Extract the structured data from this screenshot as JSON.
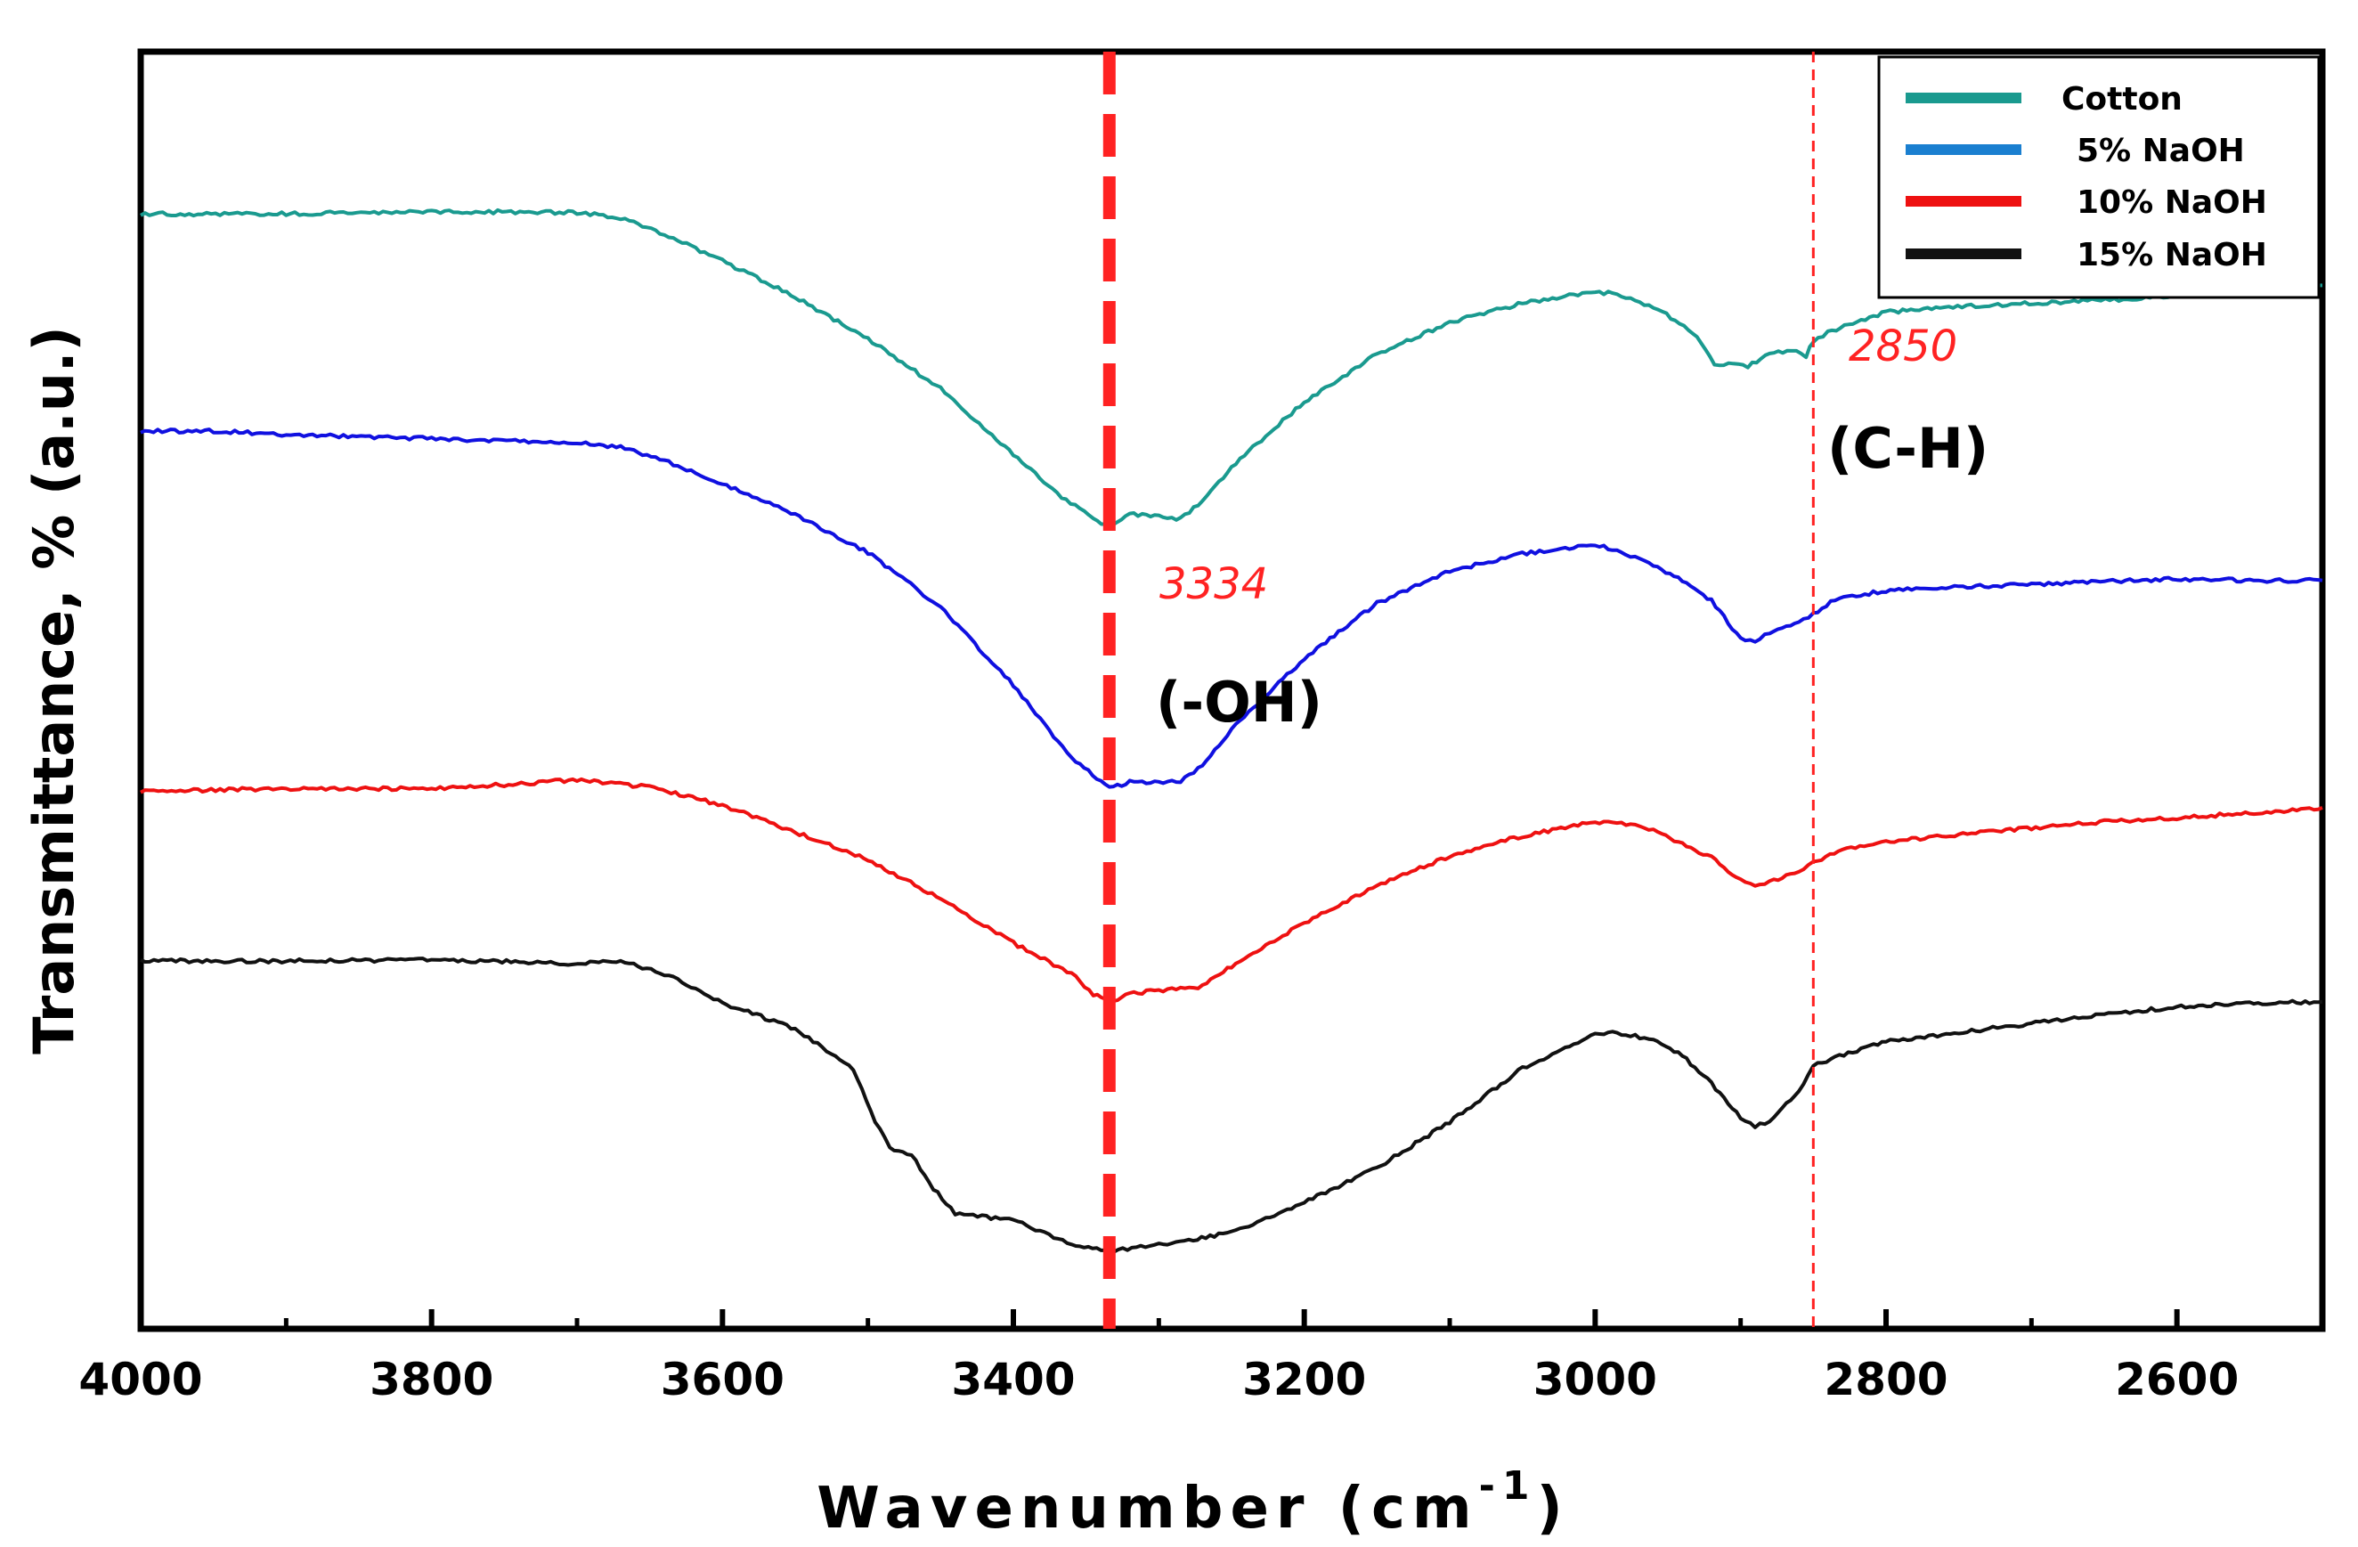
{
  "chart_data": {
    "type": "line",
    "title": "",
    "xlabel": "Wavenumber (cm",
    "xlabel_superscript": "-1",
    "xlabel_close": ")",
    "ylabel": "Transmittance, % (a.u.)",
    "xlim": [
      4000,
      2500
    ],
    "x_reversed": true,
    "y_ticks_visible": false,
    "grid": false,
    "x_ticks": [
      {
        "value": 4000,
        "label": "4000"
      },
      {
        "value": 3800,
        "label": "3800"
      },
      {
        "value": 3600,
        "label": "3600"
      },
      {
        "value": 3400,
        "label": "3400"
      },
      {
        "value": 3200,
        "label": "3200"
      },
      {
        "value": 3000,
        "label": "3000"
      },
      {
        "value": 2800,
        "label": "2800"
      },
      {
        "value": 2600,
        "label": "2600"
      }
    ],
    "legend": {
      "position": "top-right"
    },
    "series": [
      {
        "name": "Cotton",
        "legend_label": "Cotton",
        "color": "#1a9a8f",
        "x": [
          4000,
          3900,
          3800,
          3700,
          3670,
          3640,
          3600,
          3550,
          3500,
          3450,
          3400,
          3370,
          3345,
          3334,
          3320,
          3300,
          3285,
          3270,
          3250,
          3200,
          3150,
          3100,
          3050,
          3000,
          2985,
          2960,
          2945,
          2930,
          2918,
          2905,
          2895,
          2880,
          2865,
          2855,
          2850,
          2840,
          2820,
          2800,
          2780,
          2760,
          2720,
          2680,
          2640,
          2600,
          2560,
          2530,
          2500
        ],
        "y": [
          0.873,
          0.873,
          0.875,
          0.874,
          0.87,
          0.857,
          0.836,
          0.808,
          0.775,
          0.736,
          0.685,
          0.654,
          0.634,
          0.628,
          0.638,
          0.636,
          0.634,
          0.648,
          0.675,
          0.726,
          0.763,
          0.788,
          0.803,
          0.812,
          0.81,
          0.8,
          0.79,
          0.778,
          0.756,
          0.755,
          0.754,
          0.763,
          0.766,
          0.762,
          0.773,
          0.78,
          0.789,
          0.796,
          0.798,
          0.8,
          0.802,
          0.804,
          0.806,
          0.809,
          0.812,
          0.815,
          0.817
        ]
      },
      {
        "name": "5% NaOH",
        "legend_label": "5% NaOH",
        "color": "#1010e0",
        "x": [
          4000,
          3950,
          3900,
          3800,
          3700,
          3670,
          3640,
          3600,
          3550,
          3500,
          3450,
          3400,
          3360,
          3334,
          3320,
          3300,
          3285,
          3270,
          3250,
          3200,
          3150,
          3100,
          3050,
          3000,
          2985,
          2960,
          2940,
          2920,
          2900,
          2890,
          2880,
          2860,
          2850,
          2835,
          2800,
          2750,
          2700,
          2650,
          2600,
          2550,
          2500
        ],
        "y": [
          0.703,
          0.703,
          0.7,
          0.697,
          0.694,
          0.69,
          0.68,
          0.662,
          0.637,
          0.608,
          0.565,
          0.504,
          0.447,
          0.423,
          0.428,
          0.428,
          0.428,
          0.442,
          0.469,
          0.525,
          0.568,
          0.593,
          0.607,
          0.614,
          0.61,
          0.597,
          0.586,
          0.57,
          0.54,
          0.538,
          0.545,
          0.553,
          0.56,
          0.571,
          0.578,
          0.581,
          0.583,
          0.585,
          0.587,
          0.586,
          0.586
        ]
      },
      {
        "name": "10% NaOH",
        "legend_label": "10% NaOH",
        "color": "#ee1111",
        "x": [
          4000,
          3900,
          3800,
          3750,
          3700,
          3650,
          3600,
          3550,
          3500,
          3450,
          3400,
          3360,
          3345,
          3334,
          3320,
          3300,
          3270,
          3250,
          3200,
          3150,
          3100,
          3050,
          3000,
          2985,
          2960,
          2940,
          2920,
          2900,
          2890,
          2880,
          2860,
          2850,
          2830,
          2800,
          2750,
          2700,
          2650,
          2600,
          2550,
          2500
        ],
        "y": [
          0.421,
          0.423,
          0.423,
          0.426,
          0.43,
          0.424,
          0.41,
          0.389,
          0.367,
          0.337,
          0.302,
          0.278,
          0.262,
          0.256,
          0.262,
          0.265,
          0.268,
          0.284,
          0.318,
          0.347,
          0.37,
          0.386,
          0.397,
          0.397,
          0.39,
          0.38,
          0.369,
          0.351,
          0.347,
          0.35,
          0.359,
          0.365,
          0.375,
          0.381,
          0.387,
          0.392,
          0.397,
          0.4,
          0.404,
          0.408
        ]
      },
      {
        "name": "15% NaOH",
        "legend_label": "15% NaOH",
        "color": "#111111",
        "x": [
          4000,
          3900,
          3800,
          3700,
          3670,
          3640,
          3600,
          3550,
          3510,
          3495,
          3485,
          3470,
          3455,
          3440,
          3400,
          3360,
          3334,
          3300,
          3250,
          3200,
          3150,
          3100,
          3050,
          3000,
          2985,
          2960,
          2940,
          2920,
          2900,
          2890,
          2880,
          2860,
          2850,
          2820,
          2800,
          2750,
          2700,
          2650,
          2600,
          2550,
          2500
        ],
        "y": [
          0.288,
          0.288,
          0.289,
          0.286,
          0.288,
          0.278,
          0.255,
          0.235,
          0.203,
          0.162,
          0.142,
          0.136,
          0.11,
          0.09,
          0.085,
          0.066,
          0.061,
          0.066,
          0.075,
          0.099,
          0.126,
          0.162,
          0.204,
          0.23,
          0.232,
          0.226,
          0.214,
          0.192,
          0.166,
          0.158,
          0.163,
          0.186,
          0.206,
          0.218,
          0.225,
          0.232,
          0.239,
          0.246,
          0.252,
          0.255,
          0.256
        ]
      }
    ],
    "reference_lines": [
      {
        "x": 3334,
        "label": "3334",
        "color": "#ff2222",
        "style": "thick-dashed",
        "band_label": "(-OH)"
      },
      {
        "x": 2850,
        "label": "2850",
        "color": "#ff2222",
        "style": "thin-dashed",
        "band_label": "(C-H)"
      }
    ]
  }
}
